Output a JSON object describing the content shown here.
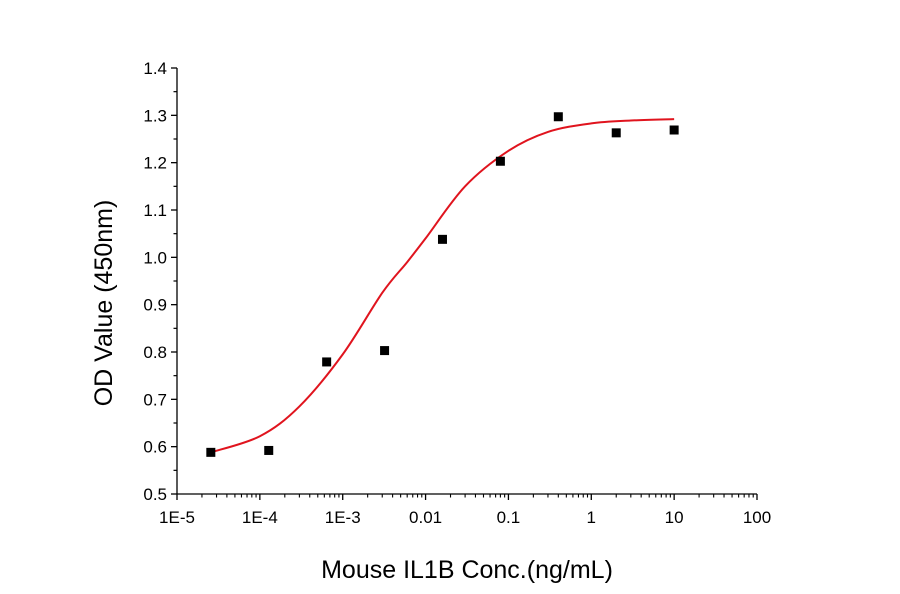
{
  "chart_data": {
    "type": "scatter",
    "title": "",
    "xlabel": "Mouse IL1B Conc.(ng/mL)",
    "ylabel": "OD Value (450nm)",
    "xscale": "log",
    "xlim": [
      1e-05,
      100
    ],
    "ylim": [
      0.5,
      1.4
    ],
    "x_ticks": [
      1e-05,
      0.0001,
      0.001,
      0.01,
      0.1,
      1,
      10,
      100
    ],
    "x_tick_labels": [
      "1E-5",
      "1E-4",
      "1E-3",
      "0.01",
      "0.1",
      "1",
      "10",
      "100"
    ],
    "y_ticks": [
      0.5,
      0.6,
      0.7,
      0.8,
      0.9,
      1.0,
      1.1,
      1.2,
      1.3,
      1.4
    ],
    "y_tick_labels": [
      "0.5",
      "0.6",
      "0.7",
      "0.8",
      "0.9",
      "1.0",
      "1.1",
      "1.2",
      "1.3",
      "1.4"
    ],
    "grid": false,
    "legend": "none",
    "series": [
      {
        "type": "scatter",
        "marker": "square",
        "color": "#000000",
        "x": [
          2.56e-05,
          0.000128,
          0.00064,
          0.0032,
          0.016,
          0.08,
          0.4,
          2,
          10
        ],
        "y": [
          0.588,
          0.592,
          0.779,
          0.803,
          1.038,
          1.203,
          1.297,
          1.263,
          1.269
        ]
      },
      {
        "type": "line",
        "color": "#e0141e",
        "x": [
          2.56e-05,
          0.0001,
          0.0003,
          0.001,
          0.003,
          0.006,
          0.01,
          0.03,
          0.1,
          0.3,
          1,
          3,
          10
        ],
        "y": [
          0.588,
          0.622,
          0.685,
          0.795,
          0.925,
          0.99,
          1.04,
          1.15,
          1.225,
          1.265,
          1.283,
          1.289,
          1.292
        ]
      }
    ]
  }
}
